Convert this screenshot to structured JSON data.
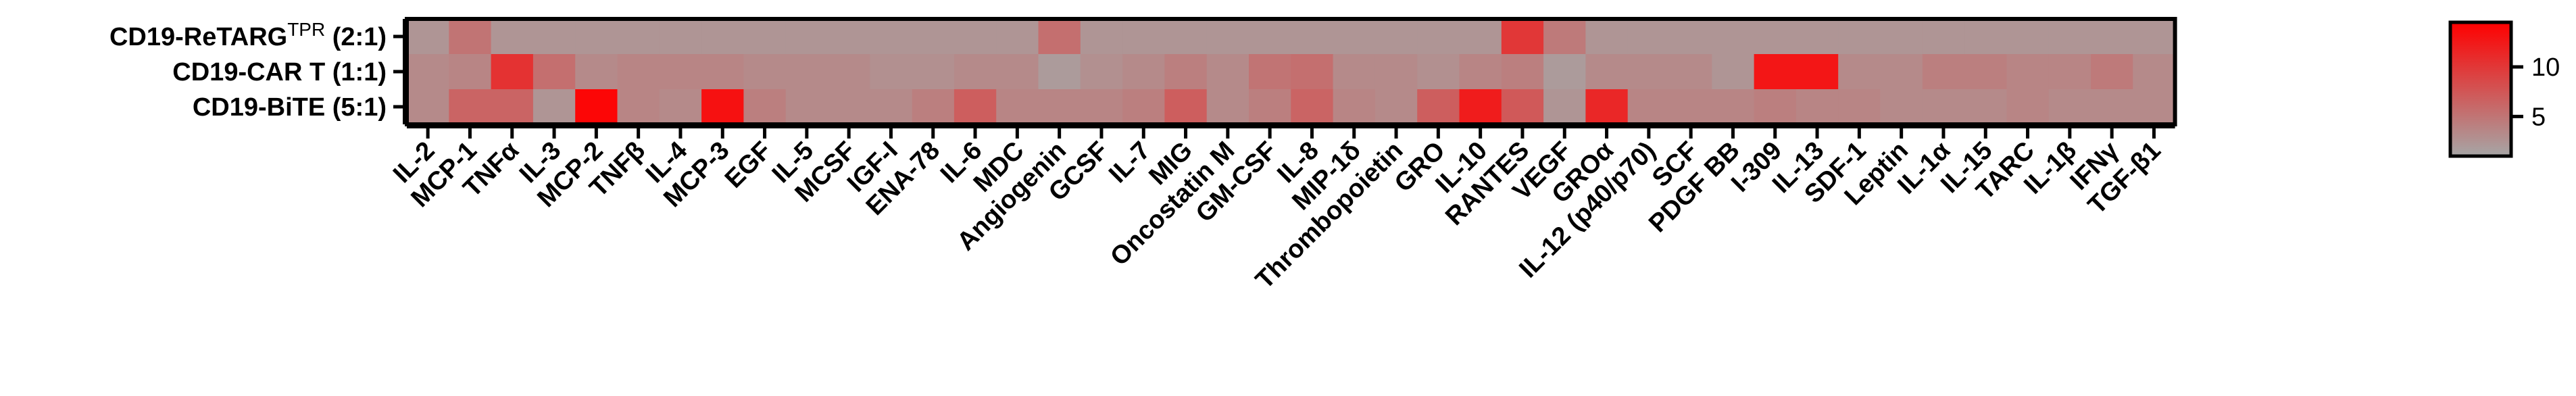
{
  "chart_data": {
    "type": "heatmap",
    "rows": [
      {
        "label": "CD19-ReTARG",
        "superscript": "TPR",
        "suffix": " (2:1)"
      },
      {
        "label": "CD19-CAR T (1:1)"
      },
      {
        "label": "CD19-BiTE (5:1)"
      }
    ],
    "columns": [
      "IL-2",
      "MCP-1",
      "TNFα",
      "IL-3",
      "MCP-2",
      "TNFβ",
      "IL-4",
      "MCP-3",
      "EGF",
      "IL-5",
      "MCSF",
      "IGF-I",
      "ENA-78",
      "IL-6",
      "MDC",
      "Angiogenin",
      "GCSF",
      "IL-7",
      "MIG",
      "Oncostatin M",
      "GM-CSF",
      "IL-8",
      "MIP-1δ",
      "Thrombopoietin",
      "GRO",
      "IL-10",
      "RANTES",
      "VEGF",
      "GROα",
      "IL-12 (p40/p70)",
      "SCF",
      "PDGF BB",
      "I-309",
      "IL-13",
      "SDF-1",
      "Leptin",
      "IL-1α",
      "IL-15",
      "TARC",
      "IL-1β",
      "IFNγ",
      "TGF-β1"
    ],
    "values": [
      [
        1.5,
        4.5,
        1.5,
        1.5,
        1.5,
        1.5,
        1.5,
        1.5,
        1.5,
        1.5,
        1.5,
        1.5,
        1.5,
        1.5,
        1.5,
        5.0,
        1.5,
        1.5,
        1.5,
        1.5,
        1.5,
        1.5,
        1.5,
        1.5,
        1.5,
        1.5,
        10.0,
        4.0,
        1.5,
        1.5,
        1.5,
        1.5,
        1.5,
        1.5,
        1.5,
        1.5,
        1.5,
        1.5,
        1.5,
        1.5,
        1.5,
        1.5
      ],
      [
        2.5,
        3.0,
        10.5,
        5.0,
        2.5,
        3.0,
        3.0,
        3.0,
        2.5,
        2.5,
        2.5,
        2.0,
        2.0,
        2.5,
        2.5,
        1.0,
        2.0,
        2.5,
        3.5,
        2.5,
        4.5,
        5.0,
        2.5,
        2.5,
        2.0,
        3.0,
        3.5,
        1.0,
        2.5,
        2.5,
        2.5,
        1.5,
        13.0,
        13.0,
        2.5,
        2.5,
        3.5,
        3.5,
        3.0,
        3.0,
        4.0,
        2.5
      ],
      [
        2.5,
        6.0,
        6.0,
        1.5,
        14.5,
        3.0,
        2.5,
        13.5,
        3.5,
        2.5,
        2.5,
        2.5,
        3.5,
        6.5,
        3.0,
        3.0,
        3.0,
        3.5,
        6.5,
        2.5,
        3.5,
        6.0,
        3.0,
        2.5,
        6.5,
        12.5,
        7.0,
        1.5,
        11.5,
        3.0,
        3.0,
        3.0,
        3.5,
        3.0,
        3.0,
        2.5,
        2.5,
        2.5,
        3.0,
        2.5,
        2.5,
        2.5
      ]
    ],
    "colorscale": {
      "min_color": "#a6a6a6",
      "max_color": "#ff0000",
      "min": 0,
      "max": 15
    },
    "colorbar_ticks": [
      5,
      10
    ],
    "colorbar_tick_labels": [
      "5",
      "10"
    ]
  }
}
